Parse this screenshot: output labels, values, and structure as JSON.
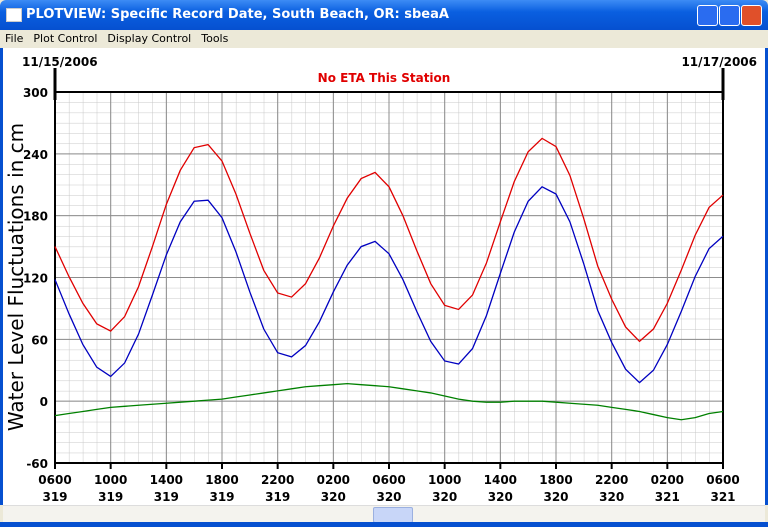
{
  "window": {
    "title": "PLOTVIEW: Specific Record Date, South Beach, OR: sbeaA",
    "menu": [
      "File",
      "Plot Control",
      "Display Control",
      "Tools"
    ]
  },
  "chart_data": {
    "type": "line",
    "title": "No ETA This Station",
    "start_date": "11/15/2006",
    "end_date": "11/17/2006",
    "y_label": "Water Level Fluctuations in cm",
    "x": [
      0,
      1,
      2,
      3,
      4,
      5,
      6,
      7,
      8,
      9,
      10,
      11,
      12,
      13,
      14,
      15,
      16,
      17,
      18,
      19,
      20,
      21,
      22,
      23,
      24,
      25,
      26,
      27,
      28,
      29,
      30,
      31,
      32,
      33,
      34,
      35,
      36,
      37,
      38,
      39,
      40,
      41,
      42,
      43,
      44,
      45,
      46,
      47,
      48
    ],
    "series": [
      {
        "color": "#e00000",
        "values": [
          150,
          121,
          95,
          75,
          68,
          82,
          111,
          150,
          191,
          224,
          246,
          249,
          233,
          201,
          163,
          127,
          105,
          101,
          114,
          139,
          170,
          197,
          216,
          222,
          208,
          180,
          146,
          114,
          93,
          89,
          103,
          134,
          174,
          213,
          242,
          255,
          247,
          219,
          177,
          131,
          99,
          72,
          58,
          70,
          95,
          127,
          161,
          188,
          200
        ]
      },
      {
        "color": "#0000c0",
        "values": [
          118,
          85,
          55,
          33,
          24,
          37,
          65,
          103,
          142,
          174,
          194,
          195,
          178,
          145,
          106,
          70,
          47,
          43,
          54,
          77,
          106,
          132,
          150,
          155,
          143,
          118,
          87,
          58,
          39,
          36,
          51,
          83,
          124,
          164,
          194,
          208,
          201,
          174,
          133,
          88,
          57,
          31,
          18,
          30,
          55,
          87,
          121,
          148,
          160
        ]
      },
      {
        "color": "#008000",
        "values": [
          -14,
          -12,
          -10,
          -8,
          -6,
          -5,
          -4,
          -3,
          -2,
          -1,
          0,
          1,
          2,
          4,
          6,
          8,
          10,
          12,
          14,
          15,
          16,
          17,
          16,
          15,
          14,
          12,
          10,
          8,
          5,
          2,
          0,
          -1,
          -1,
          0,
          0,
          0,
          -1,
          -2,
          -3,
          -4,
          -6,
          -8,
          -10,
          -13,
          -16,
          -18,
          -16,
          -12,
          -10
        ]
      }
    ],
    "xlim": [
      0,
      48
    ],
    "xticks": [
      {
        "value": 0,
        "label": "0600\n319"
      },
      {
        "value": 4,
        "label": "1000\n319"
      },
      {
        "value": 8,
        "label": "1400\n319"
      },
      {
        "value": 12,
        "label": "1800\n319"
      },
      {
        "value": 16,
        "label": "2200\n319"
      },
      {
        "value": 20,
        "label": "0200\n320"
      },
      {
        "value": 24,
        "label": "0600\n320"
      },
      {
        "value": 28,
        "label": "1000\n320"
      },
      {
        "value": 32,
        "label": "1400\n320"
      },
      {
        "value": 36,
        "label": "1800\n320"
      },
      {
        "value": 40,
        "label": "2200\n320"
      },
      {
        "value": 44,
        "label": "0200\n321"
      },
      {
        "value": 48,
        "label": "0600\n321"
      }
    ],
    "ylim": [
      -60,
      300
    ],
    "yticks": [
      -60,
      0,
      60,
      120,
      180,
      240,
      300
    ],
    "grid": true
  }
}
